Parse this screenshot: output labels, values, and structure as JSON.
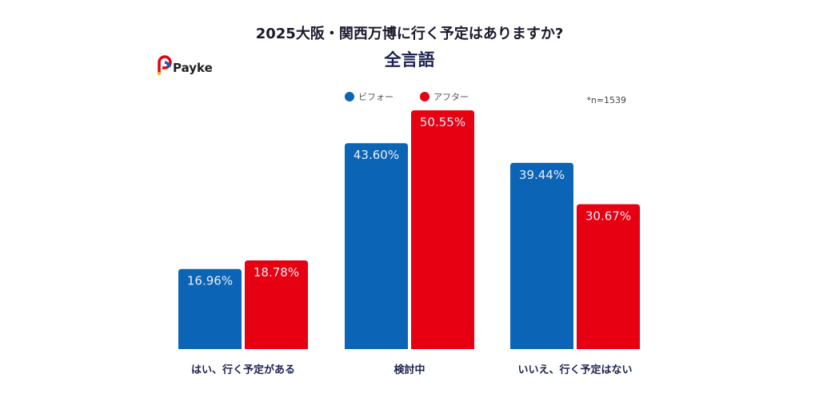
{
  "chart_data": {
    "type": "bar",
    "title": "2025大阪・関西万博に行く予定はありますか?",
    "subtitle": "全言語",
    "note": "*n=1539",
    "categories": [
      "はい、行く予定がある",
      "検討中",
      "いいえ、行く予定はない"
    ],
    "series": [
      {
        "name": "ビフォー",
        "color": "#0b64b5",
        "values": [
          16.96,
          43.6,
          39.44
        ],
        "labels": [
          "16.96%",
          "43.60%",
          "39.44%"
        ]
      },
      {
        "name": "アフター",
        "color": "#e60012",
        "values": [
          18.78,
          50.55,
          30.67
        ],
        "labels": [
          "18.78%",
          "50.55%",
          "30.67%"
        ]
      }
    ],
    "legend_position": "top-center",
    "grid": false,
    "unit": "%"
  },
  "brand": {
    "logo_text": "Payke"
  }
}
